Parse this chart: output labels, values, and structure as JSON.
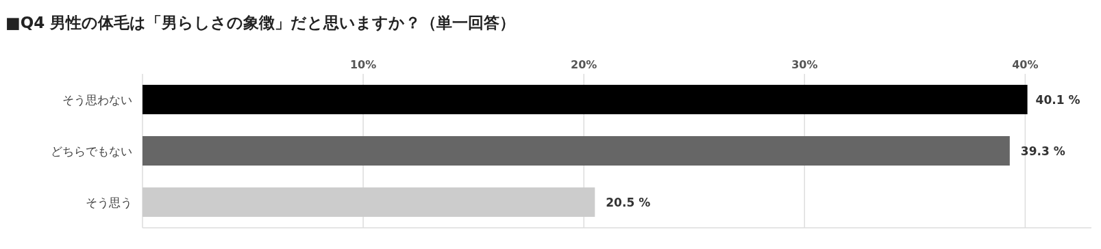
{
  "chart_data": {
    "type": "bar",
    "orientation": "horizontal",
    "title": "■Q4 男性の体毛は「男らしさの象徴」だと思いますか？（単一回答）",
    "categories": [
      "そう思わない",
      "どちらでもない",
      "そう思う"
    ],
    "values": [
      40.1,
      39.3,
      20.5
    ],
    "colors": [
      "#000000",
      "#666666",
      "#cccccc"
    ],
    "value_labels": [
      "40.1 %",
      "39.3 %",
      "20.5 %"
    ],
    "xlim": [
      0,
      43
    ],
    "xticks": [
      {
        "value": 10,
        "label": "10%"
      },
      {
        "value": 20,
        "label": "20%"
      },
      {
        "value": 30,
        "label": "30%"
      },
      {
        "value": 40,
        "label": "40%"
      }
    ],
    "grid": "x"
  }
}
